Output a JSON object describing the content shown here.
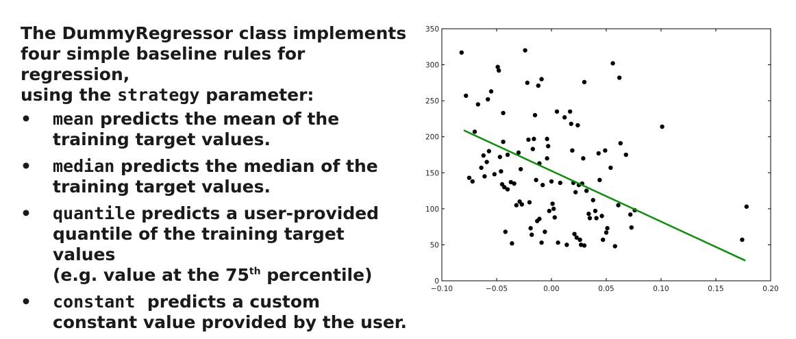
{
  "text": {
    "intro_1": "The DummyRegressor class implements",
    "intro_2": "four simple baseline rules for regression,",
    "intro_3a": "using the",
    "intro_3_code": "strategy",
    "intro_3b": "parameter:",
    "bullet_glyph": "•",
    "bullets": [
      {
        "code": "mean",
        "line1": "predicts the mean of the",
        "line2": "training target values."
      },
      {
        "code": "median",
        "line1": "predicts the median of the",
        "line2": "training target values."
      },
      {
        "code": "quantile",
        "line1": "predicts a user-provided",
        "line2": "quantile of the training target values",
        "line3a": "(e.g. value at the 75",
        "line3_sup": "th",
        "line3b": " percentile)"
      },
      {
        "code": "constant",
        "line1": "predicts a custom",
        "line2": "constant value provided by the user."
      }
    ]
  },
  "chart_data": {
    "type": "scatter",
    "xlim": [
      -0.1,
      0.2
    ],
    "ylim": [
      0,
      350
    ],
    "xticks": [
      -0.1,
      -0.05,
      0.0,
      0.05,
      0.1,
      0.15,
      0.2
    ],
    "xtick_labels": [
      "−0.10",
      "−0.05",
      "0.00",
      "0.05",
      "0.10",
      "0.15",
      "0.20"
    ],
    "yticks": [
      0,
      50,
      100,
      150,
      200,
      250,
      300,
      350
    ],
    "ytick_labels": [
      "0",
      "50",
      "100",
      "150",
      "200",
      "250",
      "300",
      "350"
    ],
    "grid": false,
    "point_color": "#000000",
    "line_color": "#0a8f0a",
    "fit_line": {
      "x": [
        -0.08,
        0.177
      ],
      "y": [
        209,
        28
      ]
    },
    "points": [
      {
        "x": -0.082,
        "y": 317
      },
      {
        "x": -0.078,
        "y": 257
      },
      {
        "x": -0.075,
        "y": 143
      },
      {
        "x": -0.072,
        "y": 138
      },
      {
        "x": -0.07,
        "y": 207
      },
      {
        "x": -0.067,
        "y": 245
      },
      {
        "x": -0.064,
        "y": 157
      },
      {
        "x": -0.062,
        "y": 174
      },
      {
        "x": -0.061,
        "y": 145
      },
      {
        "x": -0.059,
        "y": 165
      },
      {
        "x": -0.058,
        "y": 252
      },
      {
        "x": -0.057,
        "y": 180
      },
      {
        "x": -0.055,
        "y": 263
      },
      {
        "x": -0.052,
        "y": 148
      },
      {
        "x": -0.049,
        "y": 297
      },
      {
        "x": -0.048,
        "y": 292
      },
      {
        "x": -0.047,
        "y": 172
      },
      {
        "x": -0.046,
        "y": 152
      },
      {
        "x": -0.045,
        "y": 134
      },
      {
        "x": -0.044,
        "y": 193
      },
      {
        "x": -0.044,
        "y": 233
      },
      {
        "x": -0.043,
        "y": 130
      },
      {
        "x": -0.042,
        "y": 68
      },
      {
        "x": -0.04,
        "y": 175
      },
      {
        "x": -0.04,
        "y": 127
      },
      {
        "x": -0.037,
        "y": 137
      },
      {
        "x": -0.036,
        "y": 52
      },
      {
        "x": -0.034,
        "y": 135
      },
      {
        "x": -0.032,
        "y": 105
      },
      {
        "x": -0.03,
        "y": 178
      },
      {
        "x": -0.029,
        "y": 110
      },
      {
        "x": -0.028,
        "y": 155
      },
      {
        "x": -0.027,
        "y": 106
      },
      {
        "x": -0.024,
        "y": 320
      },
      {
        "x": -0.022,
        "y": 275
      },
      {
        "x": -0.021,
        "y": 196
      },
      {
        "x": -0.02,
        "y": 109
      },
      {
        "x": -0.019,
        "y": 73
      },
      {
        "x": -0.018,
        "y": 64
      },
      {
        "x": -0.017,
        "y": 183
      },
      {
        "x": -0.016,
        "y": 197
      },
      {
        "x": -0.015,
        "y": 230
      },
      {
        "x": -0.014,
        "y": 140
      },
      {
        "x": -0.013,
        "y": 83
      },
      {
        "x": -0.012,
        "y": 271
      },
      {
        "x": -0.011,
        "y": 163
      },
      {
        "x": -0.011,
        "y": 86
      },
      {
        "x": -0.009,
        "y": 280
      },
      {
        "x": -0.009,
        "y": 53
      },
      {
        "x": -0.008,
        "y": 133
      },
      {
        "x": -0.006,
        "y": 68
      },
      {
        "x": -0.004,
        "y": 197
      },
      {
        "x": -0.004,
        "y": 170
      },
      {
        "x": -0.003,
        "y": 187
      },
      {
        "x": -0.002,
        "y": 97
      },
      {
        "x": 0.0,
        "y": 138
      },
      {
        "x": 0.001,
        "y": 107
      },
      {
        "x": 0.002,
        "y": 100
      },
      {
        "x": 0.003,
        "y": 88
      },
      {
        "x": 0.005,
        "y": 235
      },
      {
        "x": 0.006,
        "y": 53
      },
      {
        "x": 0.008,
        "y": 136
      },
      {
        "x": 0.012,
        "y": 227
      },
      {
        "x": 0.014,
        "y": 50
      },
      {
        "x": 0.017,
        "y": 235
      },
      {
        "x": 0.018,
        "y": 218
      },
      {
        "x": 0.019,
        "y": 181
      },
      {
        "x": 0.02,
        "y": 136
      },
      {
        "x": 0.021,
        "y": 65
      },
      {
        "x": 0.022,
        "y": 123
      },
      {
        "x": 0.023,
        "y": 60
      },
      {
        "x": 0.024,
        "y": 216
      },
      {
        "x": 0.025,
        "y": 133
      },
      {
        "x": 0.026,
        "y": 57
      },
      {
        "x": 0.027,
        "y": 50
      },
      {
        "x": 0.028,
        "y": 135
      },
      {
        "x": 0.029,
        "y": 170
      },
      {
        "x": 0.03,
        "y": 276
      },
      {
        "x": 0.03,
        "y": 49
      },
      {
        "x": 0.032,
        "y": 125
      },
      {
        "x": 0.034,
        "y": 93
      },
      {
        "x": 0.035,
        "y": 87
      },
      {
        "x": 0.038,
        "y": 112
      },
      {
        "x": 0.04,
        "y": 97
      },
      {
        "x": 0.041,
        "y": 87
      },
      {
        "x": 0.043,
        "y": 177
      },
      {
        "x": 0.044,
        "y": 140
      },
      {
        "x": 0.046,
        "y": 90
      },
      {
        "x": 0.047,
        "y": 57
      },
      {
        "x": 0.049,
        "y": 181
      },
      {
        "x": 0.05,
        "y": 67
      },
      {
        "x": 0.051,
        "y": 73
      },
      {
        "x": 0.054,
        "y": 157
      },
      {
        "x": 0.056,
        "y": 302
      },
      {
        "x": 0.058,
        "y": 48
      },
      {
        "x": 0.061,
        "y": 105
      },
      {
        "x": 0.062,
        "y": 282
      },
      {
        "x": 0.063,
        "y": 191
      },
      {
        "x": 0.068,
        "y": 175
      },
      {
        "x": 0.072,
        "y": 92
      },
      {
        "x": 0.073,
        "y": 74
      },
      {
        "x": 0.076,
        "y": 98
      },
      {
        "x": 0.101,
        "y": 214
      },
      {
        "x": 0.174,
        "y": 57
      },
      {
        "x": 0.178,
        "y": 103
      }
    ]
  }
}
